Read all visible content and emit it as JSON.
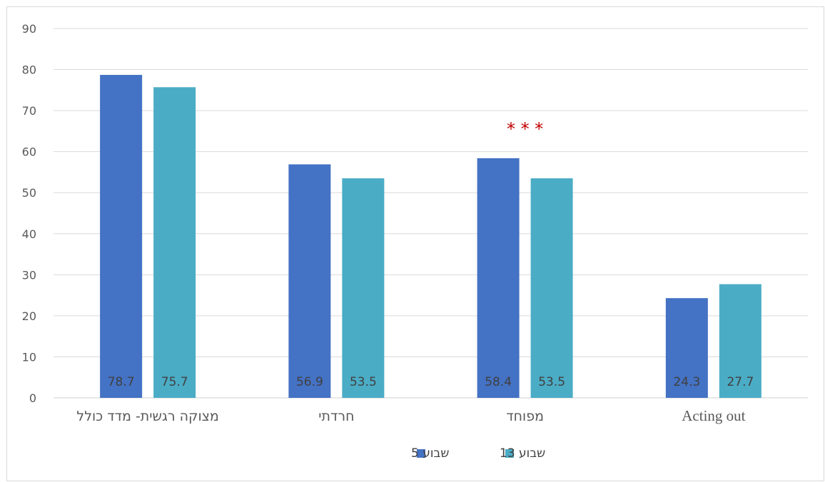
{
  "chart_data": {
    "type": "bar",
    "categories": [
      "מצוקה רגשית- מדד כולל",
      "חרדתי",
      "מפוחד",
      "Acting out"
    ],
    "series": [
      {
        "name": "שבוע 5",
        "values": [
          78.7,
          56.9,
          58.4,
          24.3
        ],
        "color": "#4472c4"
      },
      {
        "name": "שבוע 13",
        "values": [
          75.7,
          53.5,
          53.5,
          27.7
        ],
        "color": "#4bacc6"
      }
    ],
    "data_labels": [
      [
        "78.7",
        "56.9",
        "58.4",
        "24.3"
      ],
      [
        "75.7",
        "53.5",
        "53.5",
        "27.7"
      ]
    ],
    "ylim": [
      0,
      90
    ],
    "yticks": [
      0,
      10,
      20,
      30,
      40,
      50,
      60,
      70,
      80,
      90
    ],
    "ytick_labels": [
      "0",
      "10",
      "20",
      "30",
      "40",
      "50",
      "60",
      "70",
      "80",
      "90"
    ],
    "grid": true,
    "legend_position": "bottom",
    "annotations": [
      {
        "text": "* * *",
        "category_index": 2,
        "color": "#c00000"
      }
    ],
    "title": "",
    "xlabel": "",
    "ylabel": ""
  }
}
